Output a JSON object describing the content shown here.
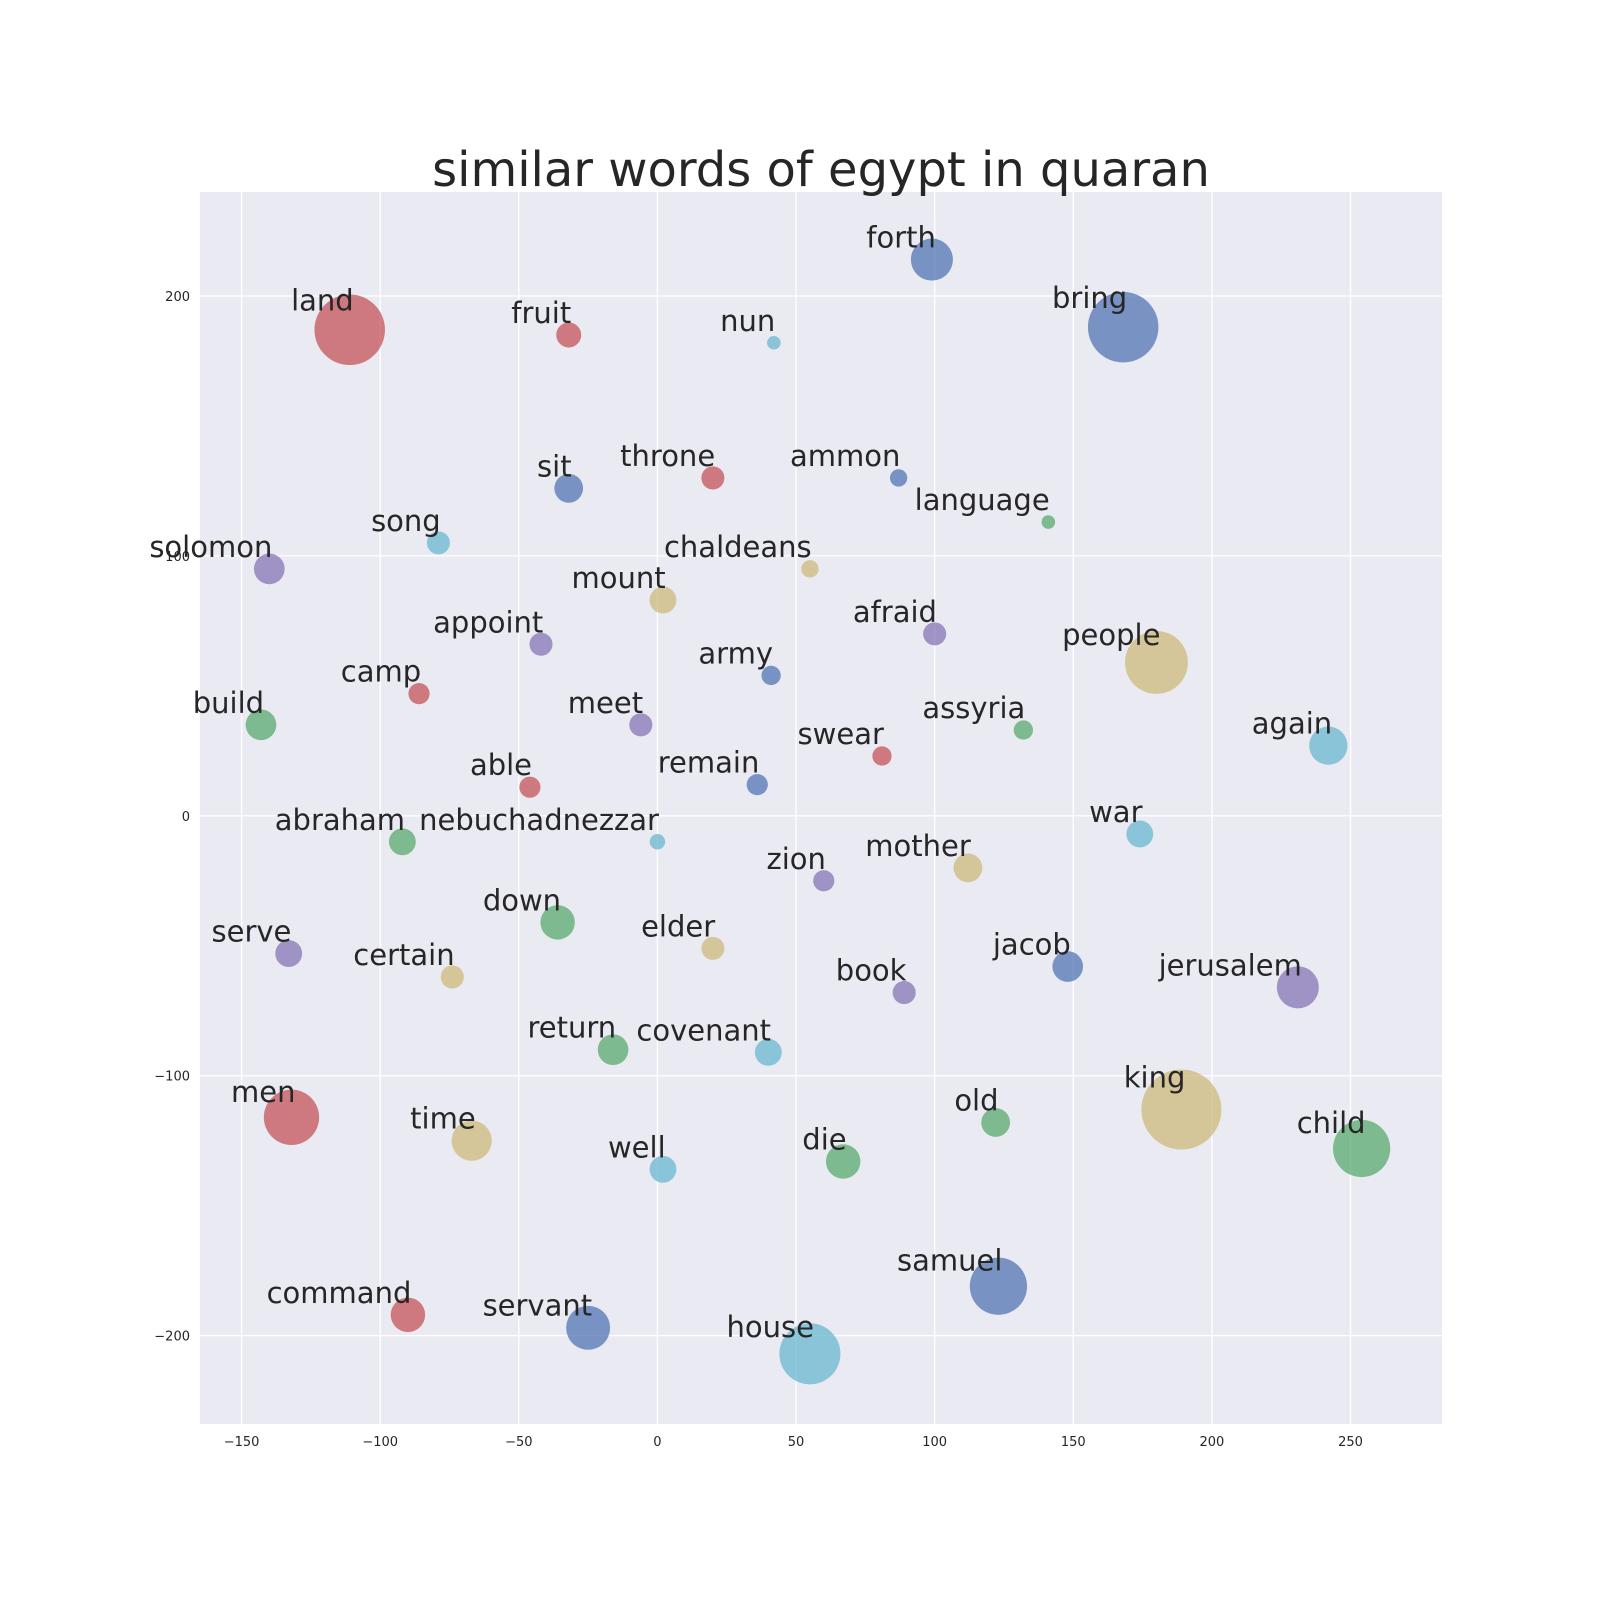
{
  "chart_data": {
    "type": "scatter",
    "title": "similar words of egypt in quaran",
    "xlabel": "",
    "ylabel": "",
    "xlim": [
      -165,
      283
    ],
    "ylim": [
      -234,
      240
    ],
    "x_ticks": [
      -150,
      -100,
      -50,
      0,
      50,
      100,
      150,
      200,
      250
    ],
    "y_ticks": [
      -200,
      -100,
      0,
      100,
      200
    ],
    "x_tick_labels": [
      "−150",
      "−100",
      "−50",
      "0",
      "50",
      "100",
      "150",
      "200",
      "250"
    ],
    "y_tick_labels": [
      "−200",
      "−100",
      "0",
      "100",
      "200"
    ],
    "grid": true,
    "background": "#eaeaf2",
    "palette": {
      "blue": "#4c72b0",
      "green": "#55a868",
      "red": "#c44e52",
      "purple": "#8172b2",
      "yellow": "#ccb974",
      "cyan": "#64b5cd"
    },
    "points": [
      {
        "label": "land",
        "x": -111,
        "y": 187,
        "size": 34,
        "color": "red"
      },
      {
        "label": "fruit",
        "x": -32,
        "y": 185,
        "size": 10,
        "color": "red"
      },
      {
        "label": "nun",
        "x": 42,
        "y": 182,
        "size": 4,
        "color": "cyan"
      },
      {
        "label": "forth",
        "x": 99,
        "y": 214,
        "size": 19,
        "color": "blue"
      },
      {
        "label": "bring",
        "x": 168,
        "y": 188,
        "size": 34,
        "color": "blue"
      },
      {
        "label": "sit",
        "x": -32,
        "y": 126,
        "size": 12,
        "color": "blue"
      },
      {
        "label": "throne",
        "x": 20,
        "y": 130,
        "size": 9,
        "color": "red"
      },
      {
        "label": "ammon",
        "x": 87,
        "y": 130,
        "size": 6,
        "color": "blue"
      },
      {
        "label": "language",
        "x": 141,
        "y": 113,
        "size": 4,
        "color": "green"
      },
      {
        "label": "song",
        "x": -79,
        "y": 105,
        "size": 9,
        "color": "cyan"
      },
      {
        "label": "solomon",
        "x": -140,
        "y": 95,
        "size": 13,
        "color": "purple"
      },
      {
        "label": "chaldeans",
        "x": 55,
        "y": 95,
        "size": 6,
        "color": "yellow"
      },
      {
        "label": "mount",
        "x": 2,
        "y": 83,
        "size": 11,
        "color": "yellow"
      },
      {
        "label": "afraid",
        "x": 100,
        "y": 70,
        "size": 9,
        "color": "purple"
      },
      {
        "label": "appoint",
        "x": -42,
        "y": 66,
        "size": 9,
        "color": "purple"
      },
      {
        "label": "people",
        "x": 180,
        "y": 59,
        "size": 30,
        "color": "yellow"
      },
      {
        "label": "army",
        "x": 41,
        "y": 54,
        "size": 7,
        "color": "blue"
      },
      {
        "label": "camp",
        "x": -86,
        "y": 47,
        "size": 8,
        "color": "red"
      },
      {
        "label": "build",
        "x": -143,
        "y": 35,
        "size": 13,
        "color": "green"
      },
      {
        "label": "meet",
        "x": -6,
        "y": 35,
        "size": 9,
        "color": "purple"
      },
      {
        "label": "assyria",
        "x": 132,
        "y": 33,
        "size": 7,
        "color": "green"
      },
      {
        "label": "again",
        "x": 242,
        "y": 27,
        "size": 17,
        "color": "cyan"
      },
      {
        "label": "swear",
        "x": 81,
        "y": 23,
        "size": 7,
        "color": "red"
      },
      {
        "label": "remain",
        "x": 36,
        "y": 12,
        "size": 8,
        "color": "blue"
      },
      {
        "label": "able",
        "x": -46,
        "y": 11,
        "size": 8,
        "color": "red"
      },
      {
        "label": "abraham",
        "x": -92,
        "y": -10,
        "size": 11,
        "color": "green"
      },
      {
        "label": "nebuchadnezzar",
        "x": 0,
        "y": -10,
        "size": 5,
        "color": "cyan"
      },
      {
        "label": "war",
        "x": 174,
        "y": -7,
        "size": 11,
        "color": "cyan"
      },
      {
        "label": "mother",
        "x": 112,
        "y": -20,
        "size": 12,
        "color": "yellow"
      },
      {
        "label": "zion",
        "x": 60,
        "y": -25,
        "size": 8,
        "color": "purple"
      },
      {
        "label": "down",
        "x": -36,
        "y": -41,
        "size": 15,
        "color": "green"
      },
      {
        "label": "serve",
        "x": -133,
        "y": -53,
        "size": 11,
        "color": "purple"
      },
      {
        "label": "elder",
        "x": 20,
        "y": -51,
        "size": 9,
        "color": "yellow"
      },
      {
        "label": "jacob",
        "x": 148,
        "y": -58,
        "size": 13,
        "color": "blue"
      },
      {
        "label": "certain",
        "x": -74,
        "y": -62,
        "size": 9,
        "color": "yellow"
      },
      {
        "label": "jerusalem",
        "x": 231,
        "y": -66,
        "size": 19,
        "color": "purple"
      },
      {
        "label": "book",
        "x": 89,
        "y": -68,
        "size": 9,
        "color": "purple"
      },
      {
        "label": "return",
        "x": -16,
        "y": -90,
        "size": 13,
        "color": "green"
      },
      {
        "label": "covenant",
        "x": 40,
        "y": -91,
        "size": 11,
        "color": "cyan"
      },
      {
        "label": "men",
        "x": -132,
        "y": -116,
        "size": 26,
        "color": "red"
      },
      {
        "label": "time",
        "x": -67,
        "y": -125,
        "size": 18,
        "color": "yellow"
      },
      {
        "label": "king",
        "x": 189,
        "y": -113,
        "size": 39,
        "color": "yellow"
      },
      {
        "label": "old",
        "x": 122,
        "y": -118,
        "size": 12,
        "color": "green"
      },
      {
        "label": "child",
        "x": 254,
        "y": -128,
        "size": 27,
        "color": "green"
      },
      {
        "label": "die",
        "x": 67,
        "y": -133,
        "size": 15,
        "color": "green"
      },
      {
        "label": "well",
        "x": 2,
        "y": -136,
        "size": 11,
        "color": "cyan"
      },
      {
        "label": "samuel",
        "x": 123,
        "y": -181,
        "size": 27,
        "color": "blue"
      },
      {
        "label": "command",
        "x": -90,
        "y": -192,
        "size": 15,
        "color": "red"
      },
      {
        "label": "servant",
        "x": -25,
        "y": -197,
        "size": 20,
        "color": "blue"
      },
      {
        "label": "house",
        "x": 55,
        "y": -207,
        "size": 29,
        "color": "cyan"
      }
    ]
  }
}
